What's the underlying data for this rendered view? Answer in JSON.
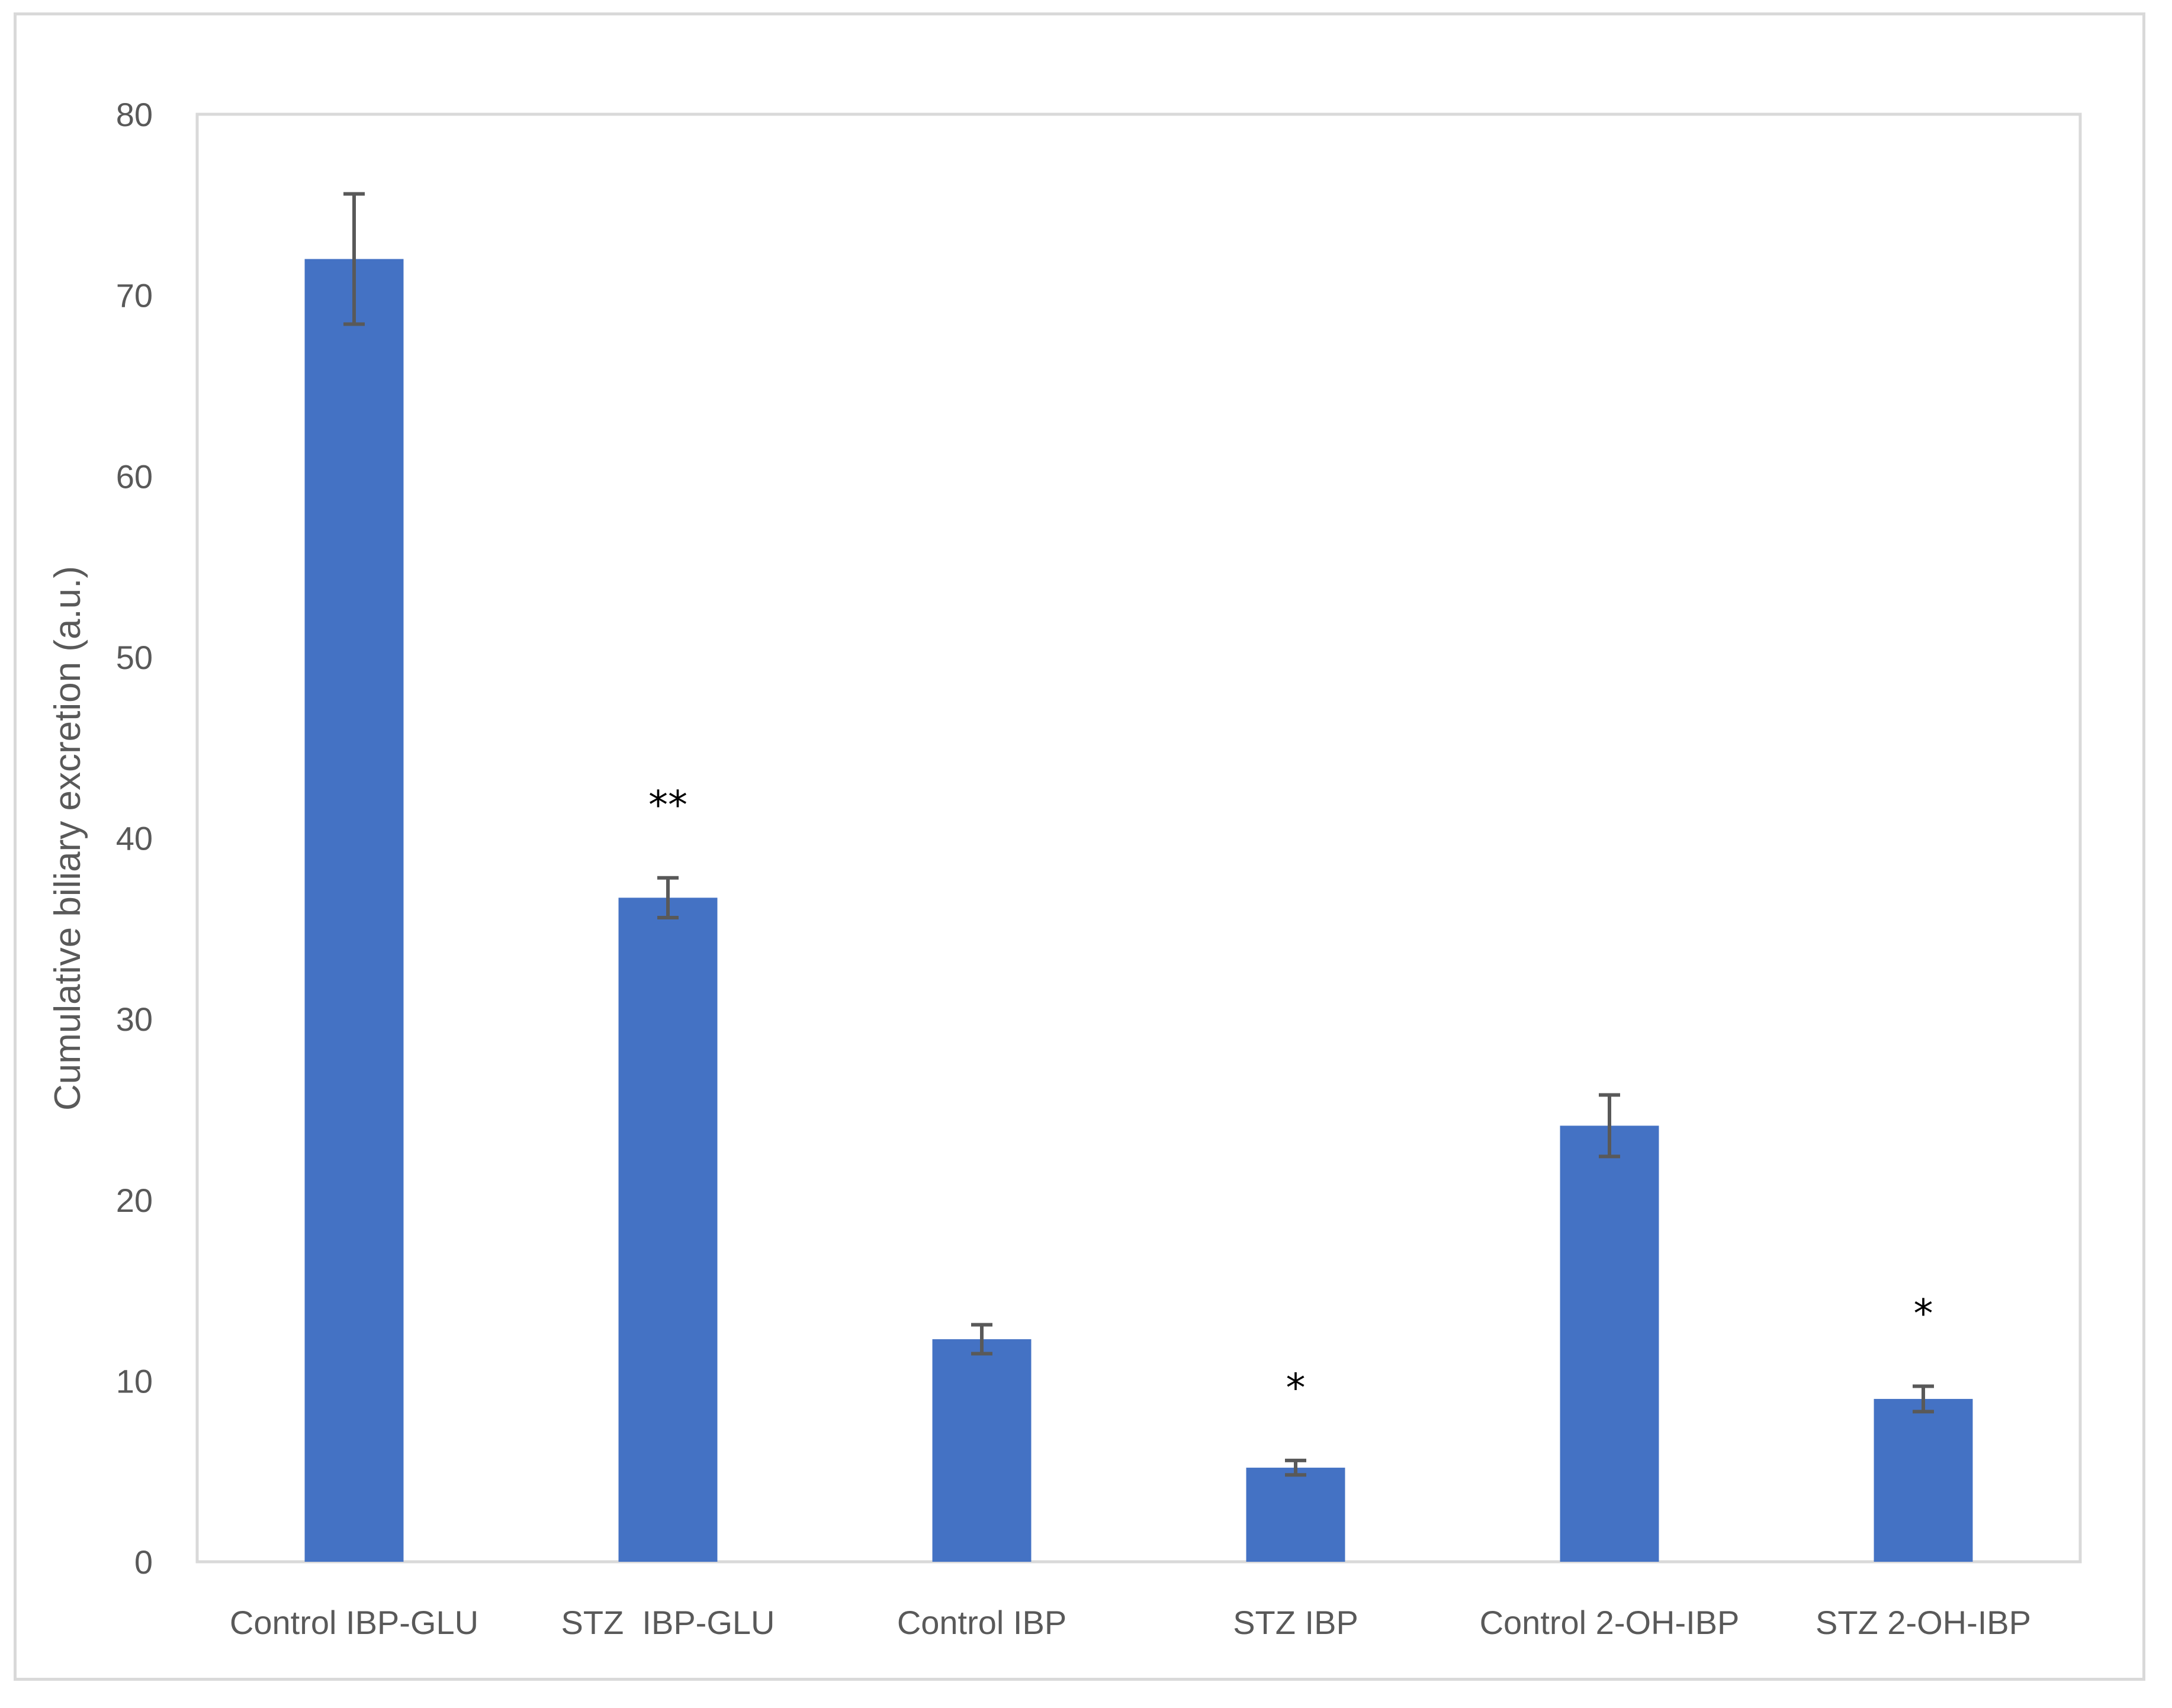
{
  "chart_data": {
    "type": "bar",
    "title": "",
    "xlabel": "",
    "ylabel": "Cumulative biliary excretion (a.u.)",
    "ylim": [
      0,
      80
    ],
    "ytick_step": 10,
    "yticks": [
      "0",
      "10",
      "20",
      "30",
      "40",
      "50",
      "60",
      "70",
      "80"
    ],
    "grid": false,
    "legend": "none",
    "bar_color": "#4472c4",
    "error_bar_color": "#595959",
    "categories": [
      "Control IBP-GLU",
      "STZ  IBP-GLU",
      "Control IBP",
      "STZ IBP",
      "Control 2-OH-IBP",
      "STZ 2-OH-IBP"
    ],
    "values": [
      72.0,
      36.7,
      12.3,
      5.2,
      24.1,
      9.0
    ],
    "error": [
      3.6,
      1.1,
      0.8,
      0.4,
      1.7,
      0.7
    ],
    "annotations": [
      "",
      "**",
      "",
      "*",
      "",
      "*"
    ]
  }
}
